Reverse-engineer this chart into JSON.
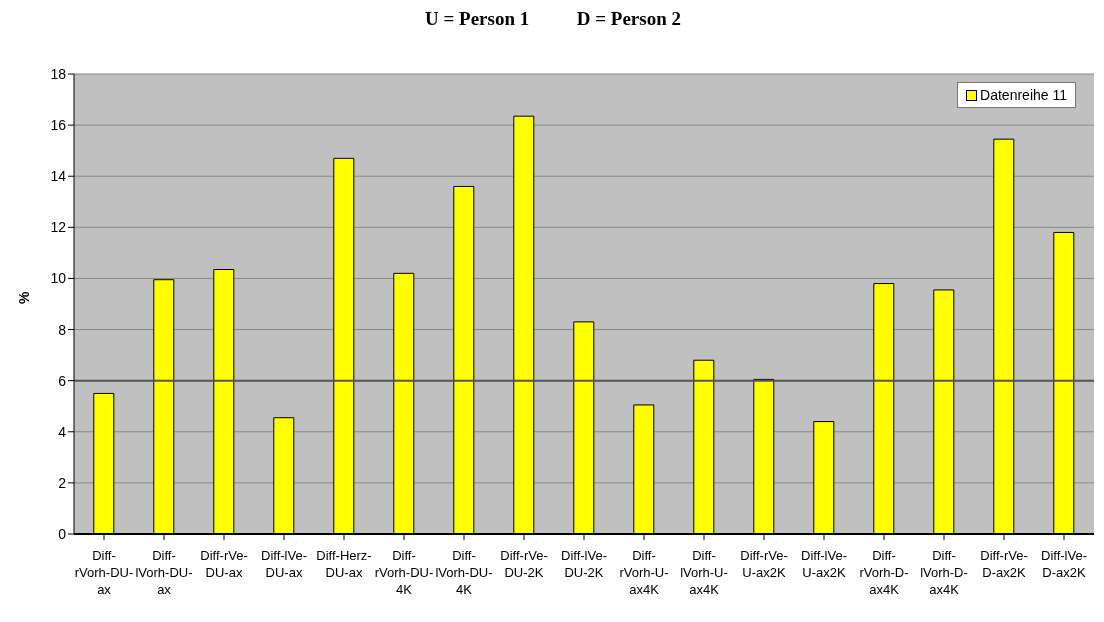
{
  "chart_data": {
    "type": "bar",
    "title": "U = Person 1          D = Person 2",
    "ylabel": "%",
    "categories": [
      "Diff-rVorh-DU-ax",
      "Diff-lVorh-DU-ax",
      "Diff-rVe-DU-ax",
      "Diff-lVe-DU-ax",
      "Diff-Herz-DU-ax",
      "Diff-rVorh-DU-4K",
      "Diff-lVorh-DU-4K",
      "Diff-rVe-DU-2K",
      "Diff-lVe-DU-2K",
      "Diff-rVorh-U-ax4K",
      "Diff-lVorh-U-ax4K",
      "Diff-rVe-U-ax2K",
      "Diff-lVe-U-ax2K",
      "Diff-rVorh-D-ax4K",
      "Diff-lVorh-D-ax4K",
      "Diff-rVe-D-ax2K",
      "Diff-lVe-D-ax2K"
    ],
    "series": [
      {
        "name": "Datenreihe 11",
        "color": "#ffff00",
        "values": [
          5.5,
          9.95,
          10.35,
          4.55,
          14.7,
          10.2,
          13.6,
          16.35,
          8.3,
          5.05,
          6.8,
          6.05,
          4.4,
          9.8,
          9.55,
          15.45,
          11.8
        ]
      }
    ],
    "ylim": [
      0,
      18
    ],
    "yticks": [
      0,
      2,
      4,
      6,
      8,
      10,
      12,
      14,
      16,
      18
    ],
    "grid": "y",
    "legend": "top right",
    "ref_lines": [
      {
        "axis": "y",
        "value": 6,
        "color": "#555555"
      }
    ]
  }
}
